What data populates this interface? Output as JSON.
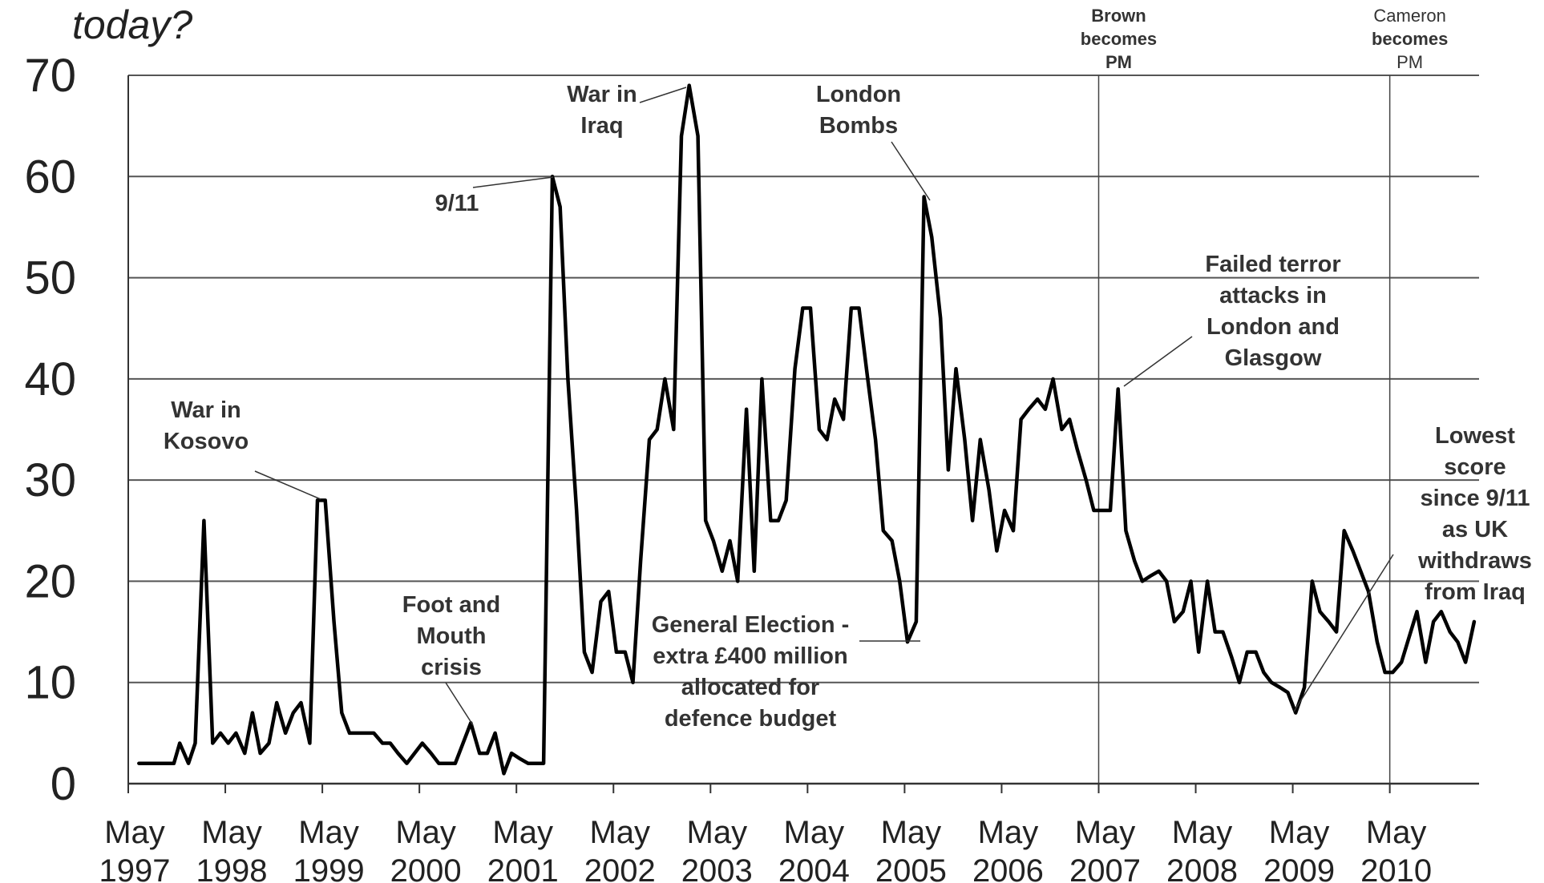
{
  "chart_data": {
    "type": "line",
    "title": "today?",
    "ylim": [
      0,
      70
    ],
    "yticks": [
      0,
      10,
      20,
      30,
      40,
      50,
      60,
      70
    ],
    "xlim": [
      1997.33,
      2011.25
    ],
    "xticks": [
      {
        "x": 1997.33,
        "line1": "May",
        "line2": "1997"
      },
      {
        "x": 1998.33,
        "line1": "May",
        "line2": "1998"
      },
      {
        "x": 1999.33,
        "line1": "May",
        "line2": "1999"
      },
      {
        "x": 2000.33,
        "line1": "May",
        "line2": "2000"
      },
      {
        "x": 2001.33,
        "line1": "May",
        "line2": "2001"
      },
      {
        "x": 2002.33,
        "line1": "May",
        "line2": "2002"
      },
      {
        "x": 2003.33,
        "line1": "May",
        "line2": "2003"
      },
      {
        "x": 2004.33,
        "line1": "May",
        "line2": "2004"
      },
      {
        "x": 2005.33,
        "line1": "May",
        "line2": "2005"
      },
      {
        "x": 2006.33,
        "line1": "May",
        "line2": "2006"
      },
      {
        "x": 2007.33,
        "line1": "May",
        "line2": "2007"
      },
      {
        "x": 2008.33,
        "line1": "May",
        "line2": "2008"
      },
      {
        "x": 2009.33,
        "line1": "May",
        "line2": "2009"
      },
      {
        "x": 2010.33,
        "line1": "May",
        "line2": "2010"
      }
    ],
    "grid": true,
    "series": [
      {
        "values": [
          [
            1997.44,
            2
          ],
          [
            1997.56,
            2
          ],
          [
            1997.68,
            2
          ],
          [
            1997.8,
            2
          ],
          [
            1997.86,
            4
          ],
          [
            1997.95,
            2
          ],
          [
            1998.02,
            4
          ],
          [
            1998.11,
            26
          ],
          [
            1998.2,
            4
          ],
          [
            1998.28,
            5
          ],
          [
            1998.36,
            4
          ],
          [
            1998.44,
            5
          ],
          [
            1998.53,
            3
          ],
          [
            1998.61,
            7
          ],
          [
            1998.69,
            3
          ],
          [
            1998.78,
            4
          ],
          [
            1998.86,
            8
          ],
          [
            1998.95,
            5
          ],
          [
            1999.03,
            7
          ],
          [
            1999.11,
            8
          ],
          [
            1999.2,
            4
          ],
          [
            1999.28,
            28
          ],
          [
            1999.36,
            28
          ],
          [
            1999.45,
            16
          ],
          [
            1999.53,
            7
          ],
          [
            1999.61,
            5
          ],
          [
            1999.7,
            5
          ],
          [
            1999.78,
            5
          ],
          [
            1999.86,
            5
          ],
          [
            1999.95,
            4
          ],
          [
            2000.03,
            4
          ],
          [
            2000.11,
            3
          ],
          [
            2000.2,
            2
          ],
          [
            2000.28,
            3
          ],
          [
            2000.36,
            4
          ],
          [
            2000.45,
            3
          ],
          [
            2000.53,
            2
          ],
          [
            2000.61,
            2
          ],
          [
            2000.7,
            2
          ],
          [
            2000.78,
            4
          ],
          [
            2000.86,
            6
          ],
          [
            2000.95,
            3
          ],
          [
            2001.03,
            3
          ],
          [
            2001.11,
            5
          ],
          [
            2001.2,
            1
          ],
          [
            2001.28,
            3
          ],
          [
            2001.36,
            2.5
          ],
          [
            2001.45,
            2
          ],
          [
            2001.53,
            2
          ],
          [
            2001.61,
            2
          ],
          [
            2001.7,
            60
          ],
          [
            2001.78,
            57
          ],
          [
            2001.86,
            40
          ],
          [
            2001.95,
            27
          ],
          [
            2002.03,
            13
          ],
          [
            2002.11,
            11
          ],
          [
            2002.2,
            18
          ],
          [
            2002.28,
            19
          ],
          [
            2002.36,
            13
          ],
          [
            2002.45,
            13
          ],
          [
            2002.53,
            10
          ],
          [
            2002.61,
            22
          ],
          [
            2002.7,
            34
          ],
          [
            2002.78,
            35
          ],
          [
            2002.86,
            40
          ],
          [
            2002.95,
            35
          ],
          [
            2003.03,
            64
          ],
          [
            2003.11,
            69
          ],
          [
            2003.2,
            64
          ],
          [
            2003.28,
            26
          ],
          [
            2003.36,
            24
          ],
          [
            2003.45,
            21
          ],
          [
            2003.53,
            24
          ],
          [
            2003.61,
            20
          ],
          [
            2003.7,
            37
          ],
          [
            2003.78,
            21
          ],
          [
            2003.86,
            40
          ],
          [
            2003.95,
            26
          ],
          [
            2004.03,
            26
          ],
          [
            2004.11,
            28
          ],
          [
            2004.2,
            41
          ],
          [
            2004.28,
            47
          ],
          [
            2004.36,
            47
          ],
          [
            2004.45,
            35
          ],
          [
            2004.53,
            34
          ],
          [
            2004.61,
            38
          ],
          [
            2004.7,
            36
          ],
          [
            2004.78,
            47
          ],
          [
            2004.86,
            47
          ],
          [
            2004.95,
            40
          ],
          [
            2005.03,
            34
          ],
          [
            2005.11,
            25
          ],
          [
            2005.2,
            24
          ],
          [
            2005.28,
            20
          ],
          [
            2005.36,
            14
          ],
          [
            2005.45,
            16
          ],
          [
            2005.53,
            58
          ],
          [
            2005.61,
            54
          ],
          [
            2005.7,
            46
          ],
          [
            2005.78,
            31
          ],
          [
            2005.86,
            41
          ],
          [
            2005.95,
            34
          ],
          [
            2006.03,
            26
          ],
          [
            2006.11,
            34
          ],
          [
            2006.2,
            29
          ],
          [
            2006.28,
            23
          ],
          [
            2006.36,
            27
          ],
          [
            2006.45,
            25
          ],
          [
            2006.53,
            36
          ],
          [
            2006.61,
            37
          ],
          [
            2006.7,
            38
          ],
          [
            2006.78,
            37
          ],
          [
            2006.86,
            40
          ],
          [
            2006.95,
            35
          ],
          [
            2007.03,
            36
          ],
          [
            2007.11,
            33
          ],
          [
            2007.2,
            30
          ],
          [
            2007.28,
            27
          ],
          [
            2007.36,
            27
          ],
          [
            2007.45,
            27
          ],
          [
            2007.53,
            39
          ],
          [
            2007.61,
            25
          ],
          [
            2007.7,
            22
          ],
          [
            2007.78,
            20
          ],
          [
            2007.86,
            20.5
          ],
          [
            2007.95,
            21
          ],
          [
            2008.03,
            20
          ],
          [
            2008.11,
            16
          ],
          [
            2008.2,
            17
          ],
          [
            2008.28,
            20
          ],
          [
            2008.36,
            13
          ],
          [
            2008.45,
            20
          ],
          [
            2008.53,
            15
          ],
          [
            2008.61,
            15
          ],
          [
            2008.7,
            12.5
          ],
          [
            2008.78,
            10
          ],
          [
            2008.86,
            13
          ],
          [
            2008.95,
            13
          ],
          [
            2009.03,
            11
          ],
          [
            2009.11,
            10
          ],
          [
            2009.2,
            9.5
          ],
          [
            2009.28,
            9
          ],
          [
            2009.36,
            7
          ],
          [
            2009.45,
            9.5
          ],
          [
            2009.53,
            20
          ],
          [
            2009.61,
            17
          ],
          [
            2009.7,
            16
          ],
          [
            2009.78,
            15
          ],
          [
            2009.86,
            25
          ],
          [
            2009.95,
            23
          ],
          [
            2010.03,
            21
          ],
          [
            2010.11,
            19
          ],
          [
            2010.2,
            14
          ],
          [
            2010.28,
            11
          ],
          [
            2010.36,
            11
          ],
          [
            2010.45,
            12
          ],
          [
            2010.53,
            14.5
          ],
          [
            2010.61,
            17
          ],
          [
            2010.7,
            12
          ],
          [
            2010.78,
            16
          ],
          [
            2010.86,
            17
          ],
          [
            2010.95,
            15
          ],
          [
            2011.03,
            14
          ],
          [
            2011.11,
            12
          ],
          [
            2011.2,
            16
          ]
        ]
      }
    ],
    "vlines": [
      {
        "x": 2007.33,
        "lines": [
          {
            "t": "Brown",
            "b": true
          },
          {
            "t": "becomes",
            "b": true
          },
          {
            "t": "PM",
            "b": true
          }
        ]
      },
      {
        "x": 2010.33,
        "lines": [
          {
            "t": "Cameron",
            "b": false
          },
          {
            "t": "becomes",
            "b": true
          },
          {
            "t": "PM",
            "b": false
          }
        ]
      }
    ],
    "annotations": [
      {
        "id": "kosovo",
        "lines": [
          "War in",
          "Kosovo"
        ]
      },
      {
        "id": "foot-mouth",
        "lines": [
          "Foot and",
          "Mouth",
          "crisis"
        ]
      },
      {
        "id": "sept11",
        "lines": [
          "9/11"
        ]
      },
      {
        "id": "iraq",
        "lines": [
          "War in",
          "Iraq"
        ]
      },
      {
        "id": "election",
        "lines": [
          "General Election -",
          "extra £400 million",
          "allocated for",
          "defence budget"
        ]
      },
      {
        "id": "london-bombs",
        "lines": [
          "London",
          "Bombs"
        ]
      },
      {
        "id": "failed-terror",
        "lines": [
          "Failed terror",
          "attacks in",
          "London and",
          "Glasgow"
        ]
      },
      {
        "id": "lowest-score",
        "lines": [
          "Lowest",
          "score",
          "since 9/11",
          "as UK",
          "withdraws",
          "from Iraq"
        ]
      }
    ]
  }
}
